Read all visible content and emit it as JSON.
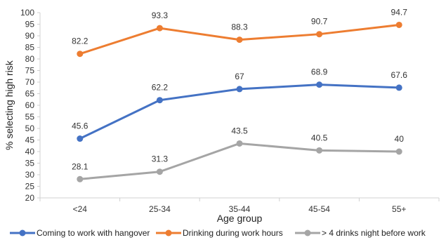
{
  "chart_data": {
    "type": "line",
    "title": "",
    "xlabel": "Age group",
    "ylabel": "% selecting high risk",
    "categories": [
      "<24",
      "25-34",
      "35-44",
      "45-54",
      "55+"
    ],
    "ylim": [
      20,
      100
    ],
    "ytick_step": 5,
    "grid": false,
    "legend_position": "bottom",
    "series": [
      {
        "name": "Coming to work with hangover",
        "color": "#4472c4",
        "values": [
          45.6,
          62.2,
          67,
          68.9,
          67.6
        ]
      },
      {
        "name": "Drinking during work hours",
        "color": "#ed7d31",
        "values": [
          82.2,
          93.3,
          88.3,
          90.7,
          94.7
        ]
      },
      {
        "name": "> 4 drinks night before work",
        "color": "#a5a5a5",
        "values": [
          28.1,
          31.3,
          43.5,
          40.5,
          40
        ]
      }
    ]
  }
}
